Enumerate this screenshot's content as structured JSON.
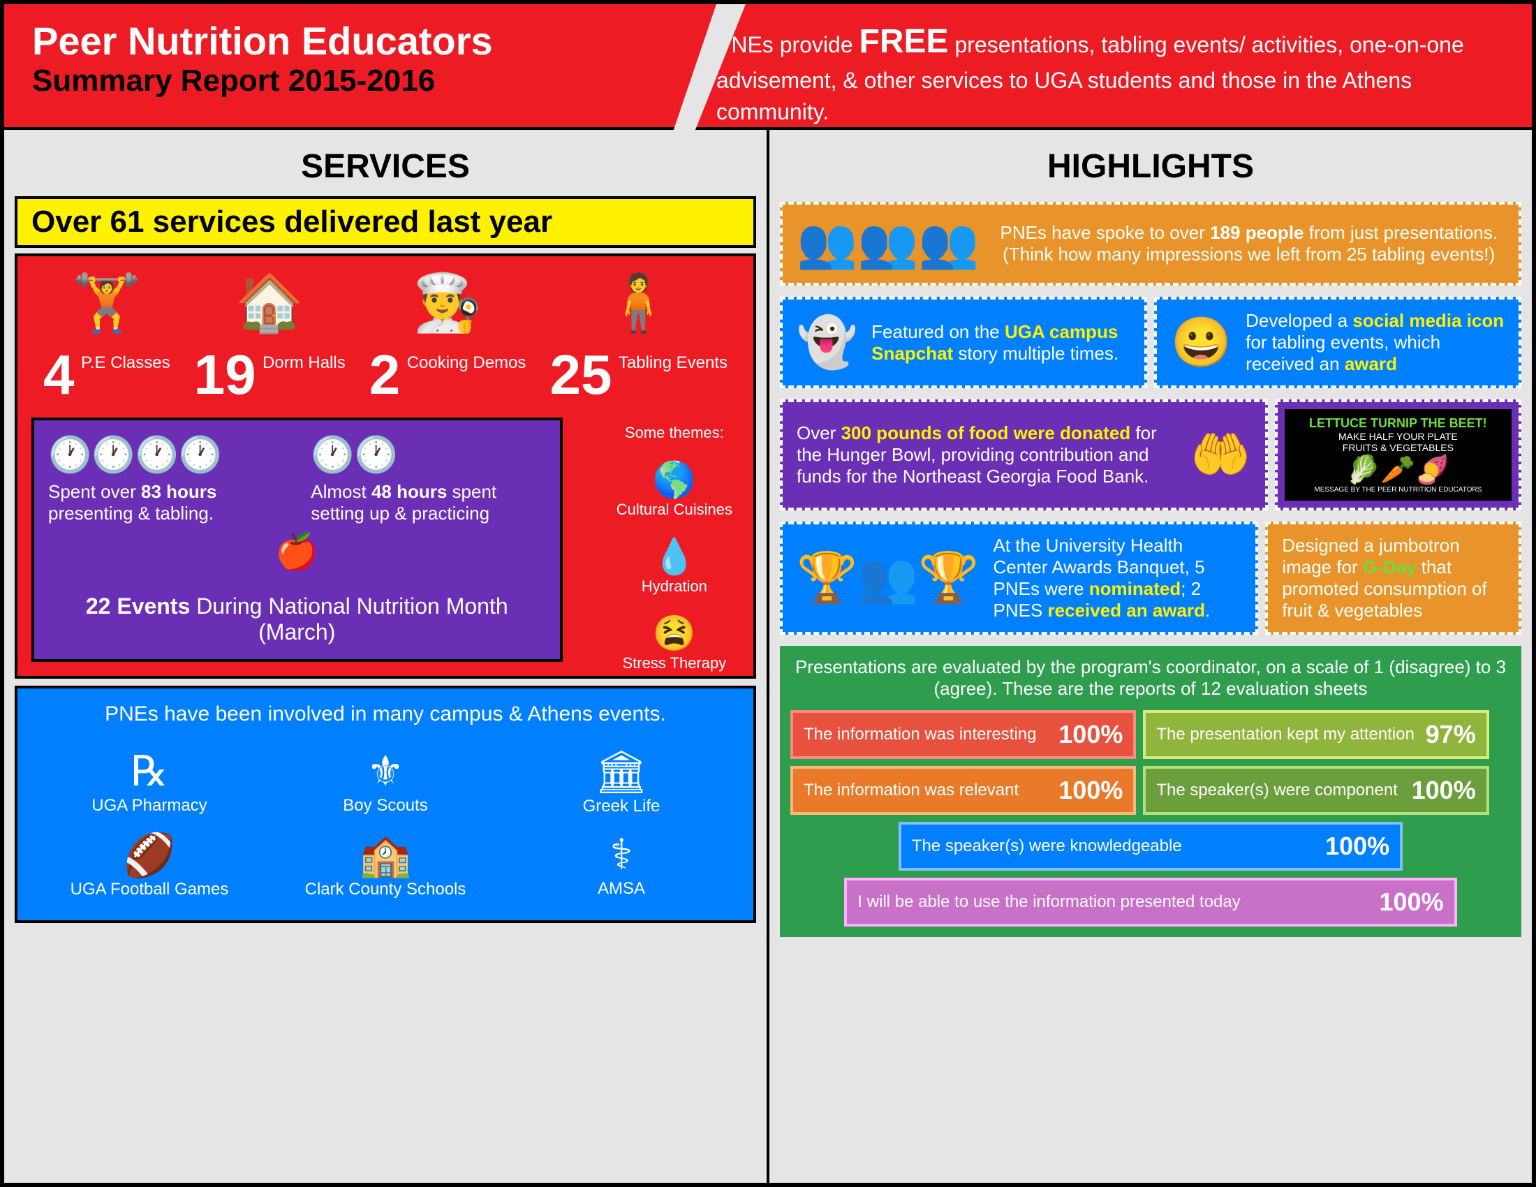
{
  "header": {
    "title": "Peer Nutrition Educators",
    "subtitle": "Summary Report 2015-2016",
    "description_pre": "PNEs provide ",
    "description_free": "FREE",
    "description_post": " presentations, tabling events/ activities, one-on-one advisement, & other services to UGA students and those in the Athens community."
  },
  "services": {
    "title": "SERVICES",
    "banner": "Over 61 services delivered last year",
    "items": [
      {
        "num": "4",
        "label": "P.E Classes",
        "icon": "🏋"
      },
      {
        "num": "19",
        "label": "Dorm Halls",
        "icon": "🏠"
      },
      {
        "num": "2",
        "label": "Cooking Demos",
        "icon": "👨‍🍳"
      },
      {
        "num": "25",
        "label": "Tabling Events",
        "icon": "🧍"
      }
    ],
    "themes_label": "Some themes:",
    "themes": [
      {
        "label": "Cultural Cuisines",
        "icon": "🌎"
      },
      {
        "label": "Hydration",
        "icon": "💧"
      },
      {
        "label": "Stress Therapy",
        "icon": "😫"
      }
    ],
    "hours1_pre": "Spent over ",
    "hours1_num": "83 hours",
    "hours1_post": " presenting & tabling.",
    "hours2_pre": "Almost ",
    "hours2_num": "48 hours",
    "hours2_post": " spent setting up & practicing",
    "events22_num": "22 Events",
    "events22_post": " During National Nutrition Month (March)",
    "campus_text": "PNEs have been involved in many campus & Athens events.",
    "campus": [
      {
        "label": "UGA Pharmacy",
        "icon": "℞"
      },
      {
        "label": "Boy Scouts",
        "icon": "⚜"
      },
      {
        "label": "Greek Life",
        "icon": "🏛"
      },
      {
        "label": "UGA Football Games",
        "icon": "🏈"
      },
      {
        "label": "Clark County Schools",
        "icon": "🏫"
      },
      {
        "label": "AMSA",
        "icon": "⚕"
      }
    ]
  },
  "highlights": {
    "title": "HIGHLIGHTS",
    "h1_pre": "PNEs have spoke to over ",
    "h1_num": "189 people",
    "h1_mid": " from just presentations.",
    "h1_post": "(Think how many impressions we left from 25 tabling events!)",
    "h2_pre": "Featured on the ",
    "h2_hl": "UGA campus Snapchat",
    "h2_post": " story multiple times.",
    "h3_pre": "Developed a ",
    "h3_hl": "social media icon",
    "h3_mid": " for tabling events, which received an ",
    "h3_hl2": "award",
    "h4_pre": "Over ",
    "h4_hl": "300 pounds of food were donated",
    "h4_post": " for the Hunger Bowl, providing contribution and funds for the Northeast Georgia Food Bank.",
    "h5_pre": "At the University Health Center Awards Banquet, 5 PNEs were ",
    "h5_hl1": "nominated",
    "h5_mid": "; 2 PNES ",
    "h5_hl2": "received an award",
    "h6_pre": "Designed a jumbotron image for ",
    "h6_hl": "G-Day",
    "h6_post": " that promoted consumption of fruit & vegetables",
    "img_title": "LETTUCE TURNIP THE BEET!",
    "img_sub1": "MAKE HALF YOUR PLATE",
    "img_sub2": "FRUITS & VEGETABLES",
    "img_footer": "MESSAGE BY THE PEER NUTRITION EDUCATORS",
    "eval_hdr": "Presentations are evaluated by the program's coordinator, on a scale of 1 (disagree) to 3 (agree). These are the reports of 12 evaluation sheets",
    "evals": [
      {
        "text": "The information was interesting",
        "pct": "100%",
        "bg": "#e8513d",
        "border": "#ff8a80",
        "w": "48%"
      },
      {
        "text": "The presentation kept my attention",
        "pct": "97%",
        "bg": "#8fb53d",
        "border": "#d4ed7a",
        "w": "48%"
      },
      {
        "text": "The information was relevant",
        "pct": "100%",
        "bg": "#e87a2a",
        "border": "#ffb87a",
        "w": "48%"
      },
      {
        "text": "The speaker(s) were component",
        "pct": "100%",
        "bg": "#6b9e3d",
        "border": "#b4e07a",
        "w": "48%"
      },
      {
        "text": "The speaker(s) were knowledgeable",
        "pct": "100%",
        "bg": "#0080ff",
        "border": "#80c0ff",
        "w": "70%"
      },
      {
        "text": "I will be able to use the information presented today",
        "pct": "100%",
        "bg": "#c970c9",
        "border": "#ffb0ff",
        "w": "85%"
      }
    ]
  },
  "colors": {
    "red": "#ed1c24",
    "yellow": "#fff200",
    "purple": "#6b2fb5",
    "blue": "#0080ff",
    "orange": "#e8942a",
    "green": "#2e9e4e"
  }
}
